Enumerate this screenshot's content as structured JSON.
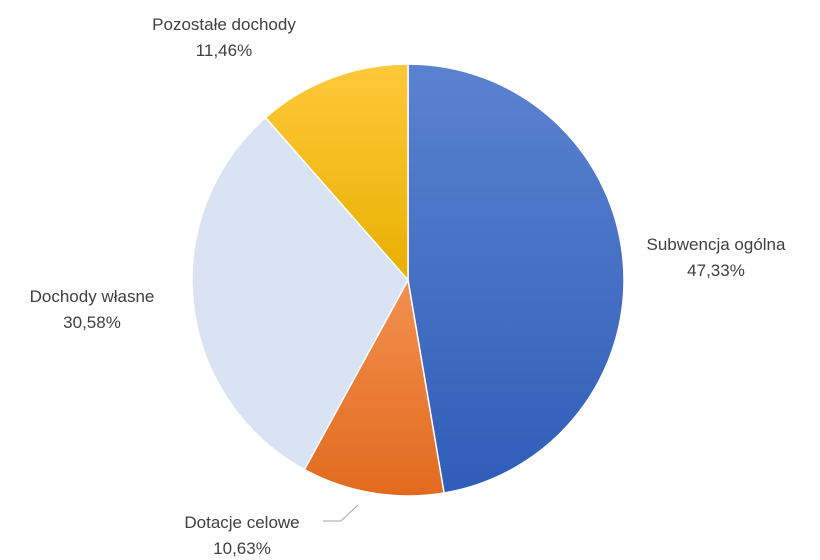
{
  "chart_data": {
    "type": "pie",
    "title": "",
    "start_angle_deg": 0,
    "direction": "clockwise",
    "legend": "none",
    "slices": [
      {
        "label": "Subwencja ogólna",
        "value": 47.33,
        "value_label": "47,33%",
        "color": "#4472C4"
      },
      {
        "label": "Dotacje celowe",
        "value": 10.63,
        "value_label": "10,63%",
        "color": "#ED7D31"
      },
      {
        "label": "Dochody własne",
        "value": 30.58,
        "value_label": "30,58%",
        "color": "#DAE3F3"
      },
      {
        "label": "Pozostałe dochody",
        "value": 11.46,
        "value_label": "11,46%",
        "color": "#FFC000"
      }
    ]
  }
}
